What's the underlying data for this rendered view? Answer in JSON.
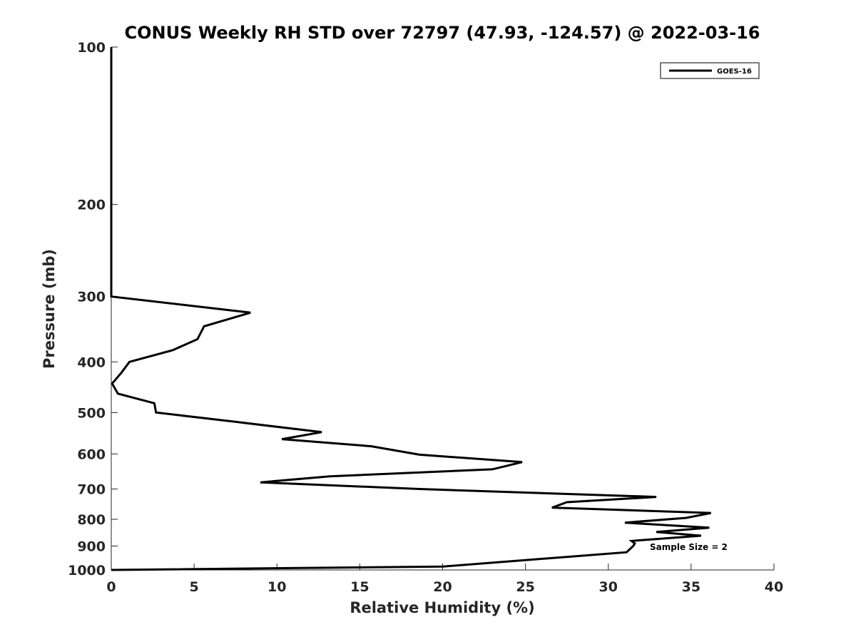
{
  "chart_data": {
    "type": "line",
    "title": "CONUS Weekly RH STD over 72797 (47.93, -124.57) @ 2022-03-16",
    "xlabel": "Relative Humidity (%)",
    "ylabel": "Pressure (mb)",
    "xlim": [
      0,
      40
    ],
    "ylim": [
      100,
      1000
    ],
    "y_scale": "log",
    "y_reversed": true,
    "x_ticks": [
      0,
      5,
      10,
      15,
      20,
      25,
      30,
      35,
      40
    ],
    "y_ticks": [
      100,
      200,
      300,
      400,
      500,
      600,
      700,
      800,
      900,
      1000
    ],
    "grid": false,
    "legend_position": "top-right",
    "annotation": "Sample Size = 2",
    "series": [
      {
        "name": "GOES-16",
        "color": "#000000",
        "x": [
          0,
          0,
          0,
          8.4,
          5.6,
          5.2,
          3.7,
          1.1,
          0.6,
          0.05,
          0.4,
          2.6,
          2.7,
          7.3,
          12.7,
          10.3,
          15.7,
          18.6,
          24.8,
          23.0,
          13.2,
          9.0,
          18.6,
          32.9,
          27.5,
          26.6,
          36.2,
          34.7,
          31.0,
          36.1,
          32.9,
          35.6,
          31.4,
          31.6,
          31.5,
          31.1,
          20.0,
          0
        ],
        "y": [
          100,
          200,
          300,
          322,
          342,
          362,
          380,
          400,
          420,
          440,
          460,
          480,
          500,
          520,
          545,
          562,
          580,
          602,
          622,
          642,
          662,
          680,
          700,
          725,
          742,
          760,
          778,
          795,
          812,
          830,
          846,
          860,
          880,
          890,
          900,
          925,
          985,
          1000
        ]
      }
    ]
  }
}
